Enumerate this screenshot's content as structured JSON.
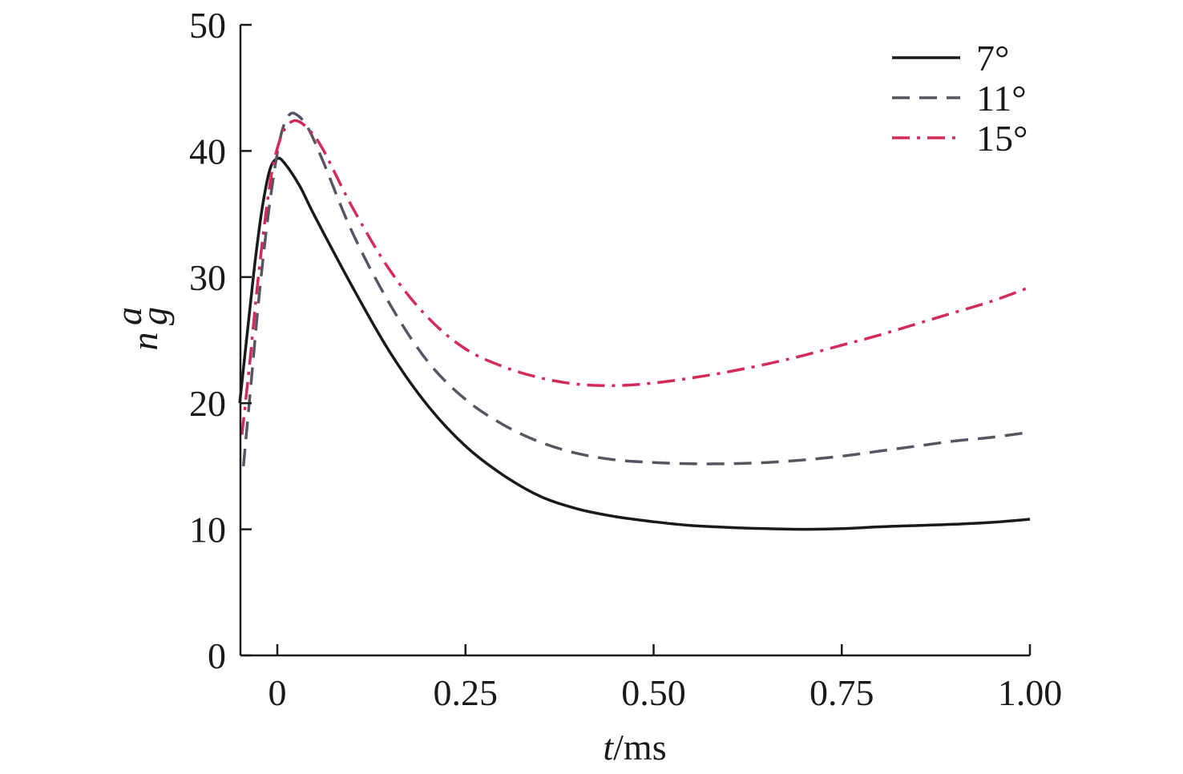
{
  "chart_data": {
    "type": "line",
    "title": "",
    "xlabel": {
      "italic": "t",
      "rest": "/ms"
    },
    "ylabel": {
      "base": "n",
      "sub": "g",
      "sup": "a"
    },
    "xlim": [
      -0.05,
      1.0
    ],
    "ylim": [
      0,
      50
    ],
    "xticks": [
      0,
      0.25,
      0.5,
      0.75,
      1.0
    ],
    "xtick_labels": [
      "0",
      "0.25",
      "0.50",
      "0.75",
      "1.00"
    ],
    "yticks": [
      0,
      10,
      20,
      30,
      40,
      50
    ],
    "ytick_labels": [
      "0",
      "10",
      "20",
      "30",
      "40",
      "50"
    ],
    "grid": false,
    "legend_position": "top-right",
    "series": [
      {
        "name": "7°",
        "color": "#1a1a1a",
        "style": "solid",
        "points": [
          [
            -0.05,
            20.0
          ],
          [
            -0.04,
            25.5
          ],
          [
            -0.03,
            31.0
          ],
          [
            -0.02,
            35.5
          ],
          [
            -0.01,
            38.5
          ],
          [
            0.0,
            39.4
          ],
          [
            0.01,
            39.0
          ],
          [
            0.03,
            37.2
          ],
          [
            0.05,
            34.8
          ],
          [
            0.1,
            29.2
          ],
          [
            0.15,
            24.0
          ],
          [
            0.2,
            19.8
          ],
          [
            0.25,
            16.6
          ],
          [
            0.3,
            14.3
          ],
          [
            0.35,
            12.6
          ],
          [
            0.4,
            11.6
          ],
          [
            0.45,
            11.0
          ],
          [
            0.5,
            10.6
          ],
          [
            0.55,
            10.3
          ],
          [
            0.6,
            10.15
          ],
          [
            0.65,
            10.05
          ],
          [
            0.7,
            10.0
          ],
          [
            0.75,
            10.05
          ],
          [
            0.8,
            10.2
          ],
          [
            0.85,
            10.3
          ],
          [
            0.9,
            10.4
          ],
          [
            0.95,
            10.55
          ],
          [
            1.0,
            10.8
          ]
        ]
      },
      {
        "name": "11°",
        "color": "#555566",
        "style": "dashed",
        "points": [
          [
            -0.045,
            15.0
          ],
          [
            -0.035,
            21.5
          ],
          [
            -0.025,
            28.0
          ],
          [
            -0.015,
            33.5
          ],
          [
            -0.005,
            38.0
          ],
          [
            0.005,
            41.3
          ],
          [
            0.015,
            42.8
          ],
          [
            0.025,
            42.9
          ],
          [
            0.04,
            41.9
          ],
          [
            0.06,
            39.3
          ],
          [
            0.1,
            33.5
          ],
          [
            0.15,
            27.8
          ],
          [
            0.2,
            23.3
          ],
          [
            0.25,
            20.3
          ],
          [
            0.3,
            18.3
          ],
          [
            0.35,
            16.9
          ],
          [
            0.4,
            16.0
          ],
          [
            0.45,
            15.5
          ],
          [
            0.5,
            15.3
          ],
          [
            0.55,
            15.2
          ],
          [
            0.6,
            15.2
          ],
          [
            0.65,
            15.3
          ],
          [
            0.7,
            15.5
          ],
          [
            0.75,
            15.8
          ],
          [
            0.8,
            16.2
          ],
          [
            0.85,
            16.6
          ],
          [
            0.9,
            17.0
          ],
          [
            0.95,
            17.3
          ],
          [
            1.0,
            17.7
          ]
        ]
      },
      {
        "name": "15°",
        "color": "#d42a5a",
        "style": "dashdot",
        "points": [
          [
            -0.047,
            17.5
          ],
          [
            -0.037,
            23.0
          ],
          [
            -0.027,
            29.0
          ],
          [
            -0.017,
            34.2
          ],
          [
            -0.007,
            38.4
          ],
          [
            0.003,
            40.8
          ],
          [
            0.013,
            42.0
          ],
          [
            0.025,
            42.4
          ],
          [
            0.04,
            41.8
          ],
          [
            0.06,
            40.2
          ],
          [
            0.1,
            35.5
          ],
          [
            0.15,
            30.5
          ],
          [
            0.2,
            26.8
          ],
          [
            0.25,
            24.3
          ],
          [
            0.3,
            22.9
          ],
          [
            0.35,
            22.0
          ],
          [
            0.4,
            21.5
          ],
          [
            0.45,
            21.4
          ],
          [
            0.5,
            21.6
          ],
          [
            0.55,
            22.0
          ],
          [
            0.6,
            22.5
          ],
          [
            0.65,
            23.1
          ],
          [
            0.7,
            23.8
          ],
          [
            0.75,
            24.6
          ],
          [
            0.8,
            25.4
          ],
          [
            0.85,
            26.3
          ],
          [
            0.9,
            27.2
          ],
          [
            0.95,
            28.1
          ],
          [
            1.0,
            29.2
          ]
        ]
      }
    ]
  }
}
